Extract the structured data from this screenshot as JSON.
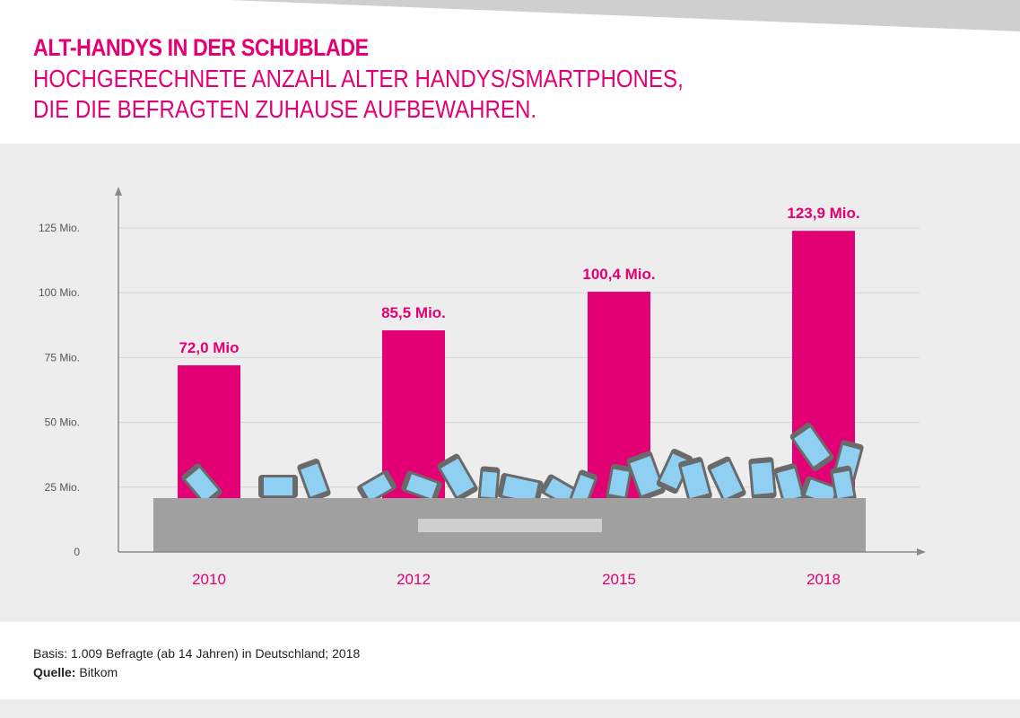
{
  "header": {
    "title": "ALT-HANDYS IN DER SCHUBLADE",
    "subtitle_line1": "HOCHGERECHNETE ANZAHL ALTER HANDYS/SMARTPHONES,",
    "subtitle_line2": "DIE DIE BEFRAGTEN ZUHAUSE AUFBEWAHREN."
  },
  "colors": {
    "bar": "#e20074",
    "axis": "#8a8a8a",
    "grid": "#d4d4d4",
    "drawer": "#a0a0a0",
    "phone_screen": "#8ecff2",
    "phone_body": "#6a6a6a"
  },
  "chart_data": {
    "type": "bar",
    "categories": [
      "2010",
      "2012",
      "2015",
      "2018"
    ],
    "values": [
      72.0,
      85.5,
      100.4,
      123.9
    ],
    "data_labels": [
      "72,0 Mio",
      "85,5 Mio.",
      "100,4 Mio.",
      "123,9 Mio."
    ],
    "yticks": [
      0,
      25,
      50,
      75,
      100,
      125
    ],
    "ytick_labels": [
      "0",
      "25 Mio.",
      "50 Mio.",
      "75 Mio.",
      "100 Mio.",
      "125 Mio."
    ],
    "ylim": [
      0,
      140
    ],
    "grid": true,
    "decoration": "drawer-with-old-phones"
  },
  "footer": {
    "basis": "Basis: 1.009 Befragte (ab 14 Jahren) in Deutschland; 2018",
    "source_label": "Quelle:",
    "source": "Bitkom"
  }
}
